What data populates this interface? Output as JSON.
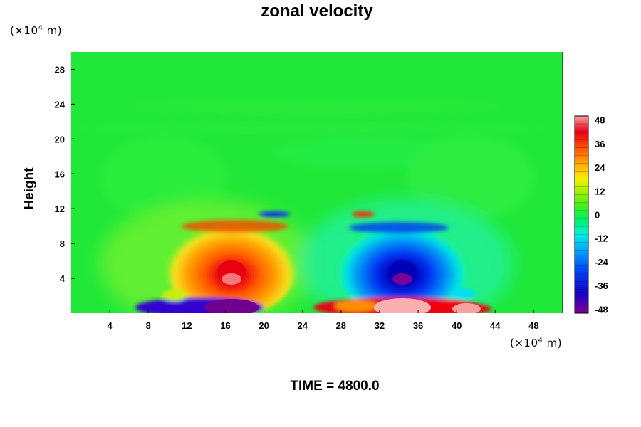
{
  "chart_data": {
    "type": "heatmap",
    "title": "zonal velocity",
    "ylabel": "Height",
    "y_unit_prefix": "(×10",
    "y_unit_exp": "4",
    "y_unit_suffix": " m)",
    "x_unit_prefix": "(×10",
    "x_unit_exp": "4",
    "x_unit_suffix": " m)",
    "footer": "TIME = 4800.0",
    "xlim": [
      0,
      51
    ],
    "ylim": [
      0,
      30
    ],
    "x_ticks": [
      4,
      8,
      12,
      16,
      20,
      24,
      28,
      32,
      36,
      40,
      44,
      48
    ],
    "y_ticks": [
      4,
      8,
      12,
      16,
      20,
      24,
      28
    ],
    "colorbar": {
      "min": -50,
      "max": 50,
      "ticks": [
        48,
        36,
        24,
        12,
        0,
        -12,
        -24,
        -36,
        -48
      ]
    },
    "features": [
      {
        "name": "positive-jet-core-left",
        "x": 16.5,
        "y": 4.5,
        "value": 40
      },
      {
        "name": "negative-jet-core-right",
        "x": 34,
        "y": 4.5,
        "value": -40
      },
      {
        "name": "positive-shear-layer-left",
        "x": 17,
        "y": 10,
        "value": 28
      },
      {
        "name": "negative-shear-layer-right",
        "x": 33,
        "y": 10,
        "value": -28
      },
      {
        "name": "surface-negative-left",
        "x": 16,
        "y": 0.8,
        "value": -48
      },
      {
        "name": "surface-positive-right",
        "x": 34,
        "y": 0.8,
        "value": 48
      }
    ]
  }
}
